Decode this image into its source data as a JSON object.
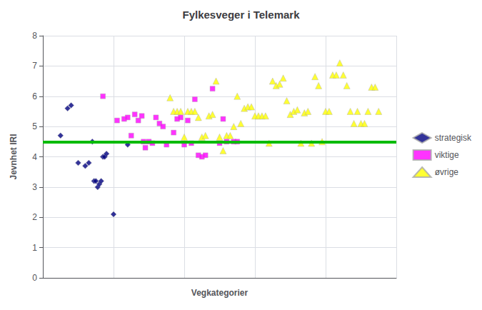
{
  "chart_data": {
    "type": "scatter",
    "title": "Fylkesveger i Telemark",
    "xlabel": "Vegkategorier",
    "ylabel": "Jevnhet IRI",
    "xlim": [
      0,
      100
    ],
    "ylim": [
      0,
      8
    ],
    "yticks": [
      0,
      1,
      2,
      3,
      4,
      5,
      6,
      7,
      8
    ],
    "tick_labels": "y",
    "grid": true,
    "legend": "right",
    "hlines": [
      {
        "y": 4.5,
        "color": "#00bb00"
      }
    ],
    "series": [
      {
        "name": "strategisk",
        "color": "#000080",
        "marker": "diamond",
        "x": [
          5,
          7,
          8,
          10,
          12,
          13,
          14,
          14.5,
          15,
          15.5,
          16,
          16.5,
          17,
          17.5,
          18,
          20,
          24
        ],
        "values": [
          4.7,
          5.6,
          5.7,
          3.8,
          3.7,
          3.8,
          4.5,
          3.2,
          3.2,
          3.0,
          3.1,
          3.2,
          4.0,
          4.0,
          4.1,
          2.1,
          4.4
        ]
      },
      {
        "name": "viktige",
        "color": "#ff00ff",
        "marker": "square",
        "x": [
          17,
          21,
          23,
          24,
          25,
          26,
          27,
          28,
          28.5,
          29,
          30,
          31,
          32,
          33,
          34,
          35,
          37,
          38,
          39,
          40,
          41,
          42,
          43,
          44,
          45,
          46,
          48,
          50,
          51,
          52,
          54,
          55
        ],
        "values": [
          6.0,
          5.2,
          5.25,
          5.3,
          4.7,
          5.4,
          5.2,
          5.35,
          4.5,
          4.3,
          4.5,
          4.45,
          5.3,
          5.1,
          5.0,
          4.4,
          4.8,
          5.25,
          5.3,
          4.4,
          5.2,
          4.45,
          5.9,
          4.05,
          4.0,
          4.05,
          6.25,
          4.45,
          5.25,
          4.5,
          4.5,
          4.5
        ]
      },
      {
        "name": "øvrige",
        "color": "#ffff00",
        "marker": "triangle",
        "x": [
          36,
          37,
          38,
          39,
          40,
          41,
          42,
          43,
          44,
          45,
          46,
          47,
          48,
          49,
          50,
          51,
          52,
          53,
          54,
          55,
          56,
          57,
          58,
          59,
          60,
          61,
          62,
          63,
          64,
          65,
          66,
          67,
          68,
          69,
          70,
          71,
          72,
          73,
          74,
          75,
          76,
          77,
          78,
          79,
          80,
          81,
          82,
          83,
          84,
          85,
          86,
          87,
          88,
          89,
          90,
          91,
          92,
          93,
          94,
          95
        ],
        "values": [
          5.95,
          5.5,
          5.5,
          5.5,
          4.65,
          5.5,
          5.5,
          5.5,
          5.3,
          4.65,
          4.7,
          5.35,
          5.4,
          6.5,
          4.65,
          4.2,
          4.7,
          4.7,
          5.0,
          6.0,
          5.1,
          5.6,
          5.65,
          5.65,
          5.35,
          5.35,
          5.35,
          5.35,
          4.45,
          6.5,
          6.35,
          6.4,
          6.6,
          5.85,
          5.4,
          5.5,
          5.55,
          4.45,
          5.45,
          5.5,
          4.45,
          6.65,
          6.35,
          4.5,
          5.5,
          5.5,
          6.7,
          6.7,
          7.1,
          6.7,
          6.35,
          5.5,
          5.1,
          5.5,
          5.1,
          5.1,
          5.5,
          6.3,
          6.3,
          5.5
        ]
      }
    ]
  }
}
